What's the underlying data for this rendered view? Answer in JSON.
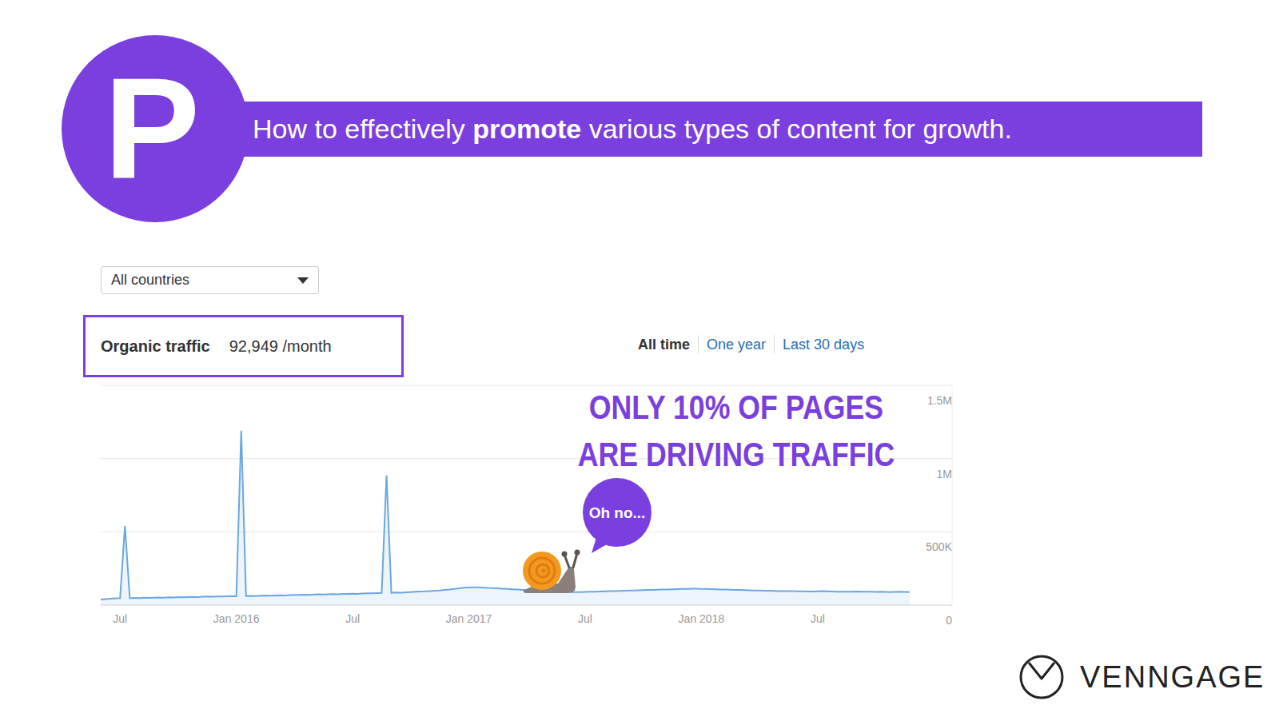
{
  "slide": {
    "letter": "P",
    "headline": {
      "before": "How to effectively ",
      "bold": "promote",
      "after": " various types of content for growth."
    }
  },
  "controls": {
    "filter": "All countries",
    "periods": [
      "All time",
      "One year",
      "Last 30 days"
    ]
  },
  "brand": "VENNGAGE",
  "chart_data": {
    "type": "area",
    "title": "Organic traffic",
    "subtitle": "92,949 /month",
    "annotations": [
      "ONLY 10% OF PAGES",
      "ARE DRIVING TRAFFIC",
      "Oh no..."
    ],
    "color": "#6aa7e3",
    "grid": true,
    "ylim": [
      0,
      1500000
    ],
    "yticks": [
      0,
      {
        "value": 500000,
        "label": "500K"
      },
      {
        "value": 1000000,
        "label": "1M"
      },
      {
        "value": 1500000,
        "label": "1.5M"
      }
    ],
    "categories": [
      null,
      null,
      null,
      null,
      "Jul",
      null,
      null,
      null,
      null,
      null,
      null,
      null,
      null,
      null,
      null,
      null,
      null,
      null,
      null,
      null,
      null,
      null,
      null,
      null,
      null,
      null,
      null,
      null,
      "Jan 2016",
      null,
      null,
      null,
      null,
      null,
      null,
      null,
      null,
      null,
      null,
      null,
      null,
      null,
      null,
      null,
      null,
      null,
      null,
      null,
      null,
      null,
      null,
      null,
      "Jul",
      null,
      null,
      null,
      null,
      null,
      null,
      null,
      null,
      null,
      null,
      null,
      null,
      null,
      null,
      null,
      null,
      null,
      null,
      null,
      null,
      null,
      null,
      null,
      "Jan 2017",
      null,
      null,
      null,
      null,
      null,
      null,
      null,
      null,
      null,
      null,
      null,
      null,
      null,
      null,
      null,
      null,
      null,
      null,
      null,
      null,
      null,
      null,
      null,
      "Jul",
      null,
      null,
      null,
      null,
      null,
      null,
      null,
      null,
      null,
      null,
      null,
      null,
      null,
      null,
      null,
      null,
      null,
      null,
      null,
      null,
      null,
      null,
      null,
      "Jan 2018",
      null,
      null,
      null,
      null,
      null,
      null,
      null,
      null,
      null,
      null,
      null,
      null,
      null,
      null,
      null,
      null,
      null,
      null,
      null,
      null,
      null,
      null,
      null,
      "Jul",
      null,
      null,
      null,
      null,
      null,
      null,
      null,
      null,
      null,
      null,
      null,
      null,
      null,
      null,
      null,
      null,
      null,
      null,
      null
    ],
    "values": [
      38000,
      41000,
      44000,
      46000,
      48000,
      540000,
      47000,
      49000,
      48000,
      50000,
      49000,
      51000,
      52000,
      50000,
      53000,
      52000,
      54000,
      53000,
      55000,
      56000,
      55000,
      57000,
      58000,
      57000,
      59000,
      58000,
      60000,
      61000,
      60000,
      1190000,
      62000,
      63000,
      62000,
      64000,
      65000,
      64000,
      66000,
      67000,
      66000,
      68000,
      69000,
      70000,
      71000,
      70000,
      72000,
      73000,
      72000,
      74000,
      75000,
      74000,
      76000,
      77000,
      78000,
      77000,
      79000,
      80000,
      81000,
      82000,
      83000,
      885000,
      84000,
      86000,
      85000,
      87000,
      89000,
      91000,
      93000,
      94000,
      96000,
      98000,
      100000,
      103000,
      106000,
      110000,
      114000,
      118000,
      120000,
      122000,
      121000,
      119000,
      117000,
      116000,
      114000,
      112000,
      110000,
      108000,
      106000,
      104000,
      102000,
      100000,
      98000,
      96000,
      94000,
      92000,
      91000,
      90000,
      89000,
      88000,
      88000,
      89000,
      90000,
      91000,
      92000,
      93000,
      94000,
      95000,
      96000,
      97000,
      98000,
      99000,
      100000,
      101000,
      102000,
      103000,
      104000,
      105000,
      106000,
      107000,
      108000,
      109000,
      110000,
      111000,
      112000,
      112000,
      111000,
      110000,
      109000,
      108000,
      107000,
      106000,
      105000,
      104000,
      103000,
      102000,
      101000,
      100000,
      99000,
      98000,
      98000,
      97000,
      96000,
      96000,
      95000,
      95000,
      94000,
      94000,
      93000,
      93000,
      94000,
      95000,
      94000,
      93000,
      92000,
      92000,
      91000,
      92000,
      93000,
      92000,
      91000,
      91000,
      90000,
      91000,
      90000,
      89000,
      90000,
      91000,
      90000,
      89000
    ]
  }
}
